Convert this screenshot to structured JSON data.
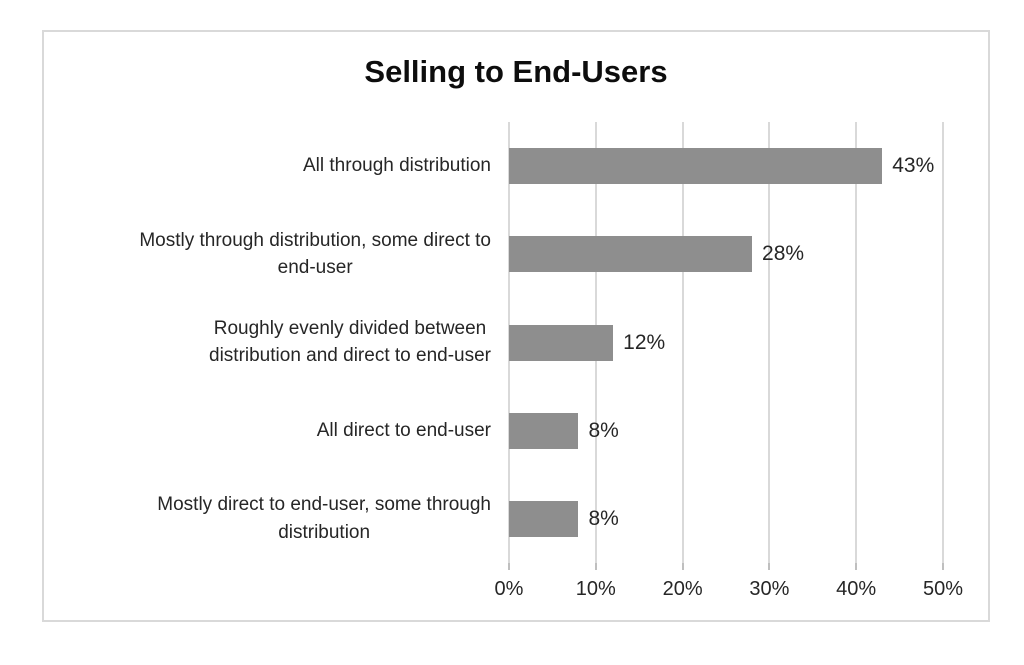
{
  "chart_data": {
    "type": "bar",
    "orientation": "horizontal",
    "title": "Selling to End-Users",
    "categories": [
      "All through distribution",
      "Mostly through distribution, some direct to\nend-user",
      "Roughly evenly divided between\ndistribution and direct to end-user",
      "All direct to end-user",
      "Mostly direct to end-user, some through\ndistribution"
    ],
    "values": [
      43,
      28,
      12,
      8,
      8
    ],
    "value_labels": [
      "43%",
      "28%",
      "12%",
      "8%",
      "8%"
    ],
    "xlim": [
      0,
      50
    ],
    "x_tick_values": [
      0,
      10,
      20,
      30,
      40,
      50
    ],
    "x_tick_labels": [
      "0%",
      "10%",
      "20%",
      "30%",
      "40%",
      "50%"
    ],
    "grid": "vertical-gridlines-on",
    "legend": "none",
    "colors": {
      "bar": "#8e8e8e",
      "gridline": "#d9d9d9",
      "tick": "#bfbfbf",
      "frame_border": "#d9d9d9",
      "text": "#262626",
      "title_text": "#0d0d0d",
      "background": "#ffffff"
    }
  }
}
